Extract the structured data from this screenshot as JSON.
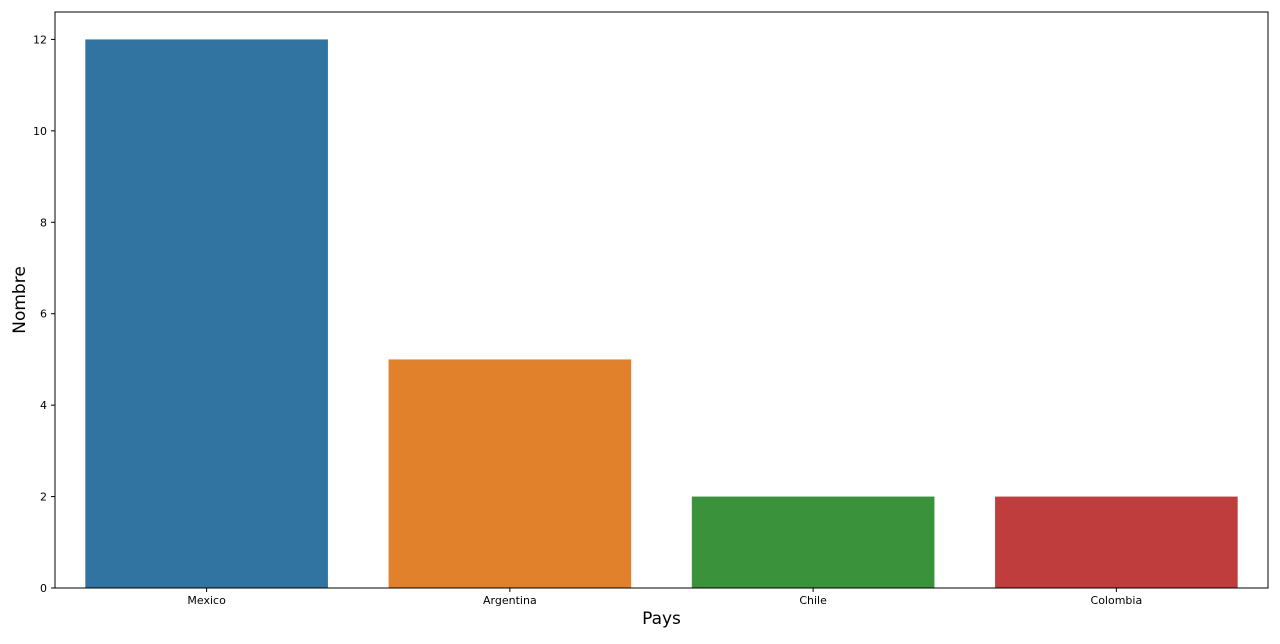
{
  "chart_data": {
    "type": "bar",
    "categories": [
      "Mexico",
      "Argentina",
      "Chile",
      "Colombia"
    ],
    "values": [
      12,
      5,
      2,
      2
    ],
    "colors": [
      "#3274a1",
      "#e1812c",
      "#3a923a",
      "#c03d3e"
    ],
    "title": "",
    "xlabel": "Pays",
    "ylabel": "Nombre",
    "ylim": [
      0,
      12.6
    ],
    "yticks": [
      0,
      2,
      4,
      6,
      8,
      10,
      12
    ],
    "grid": false,
    "legend": "none"
  }
}
